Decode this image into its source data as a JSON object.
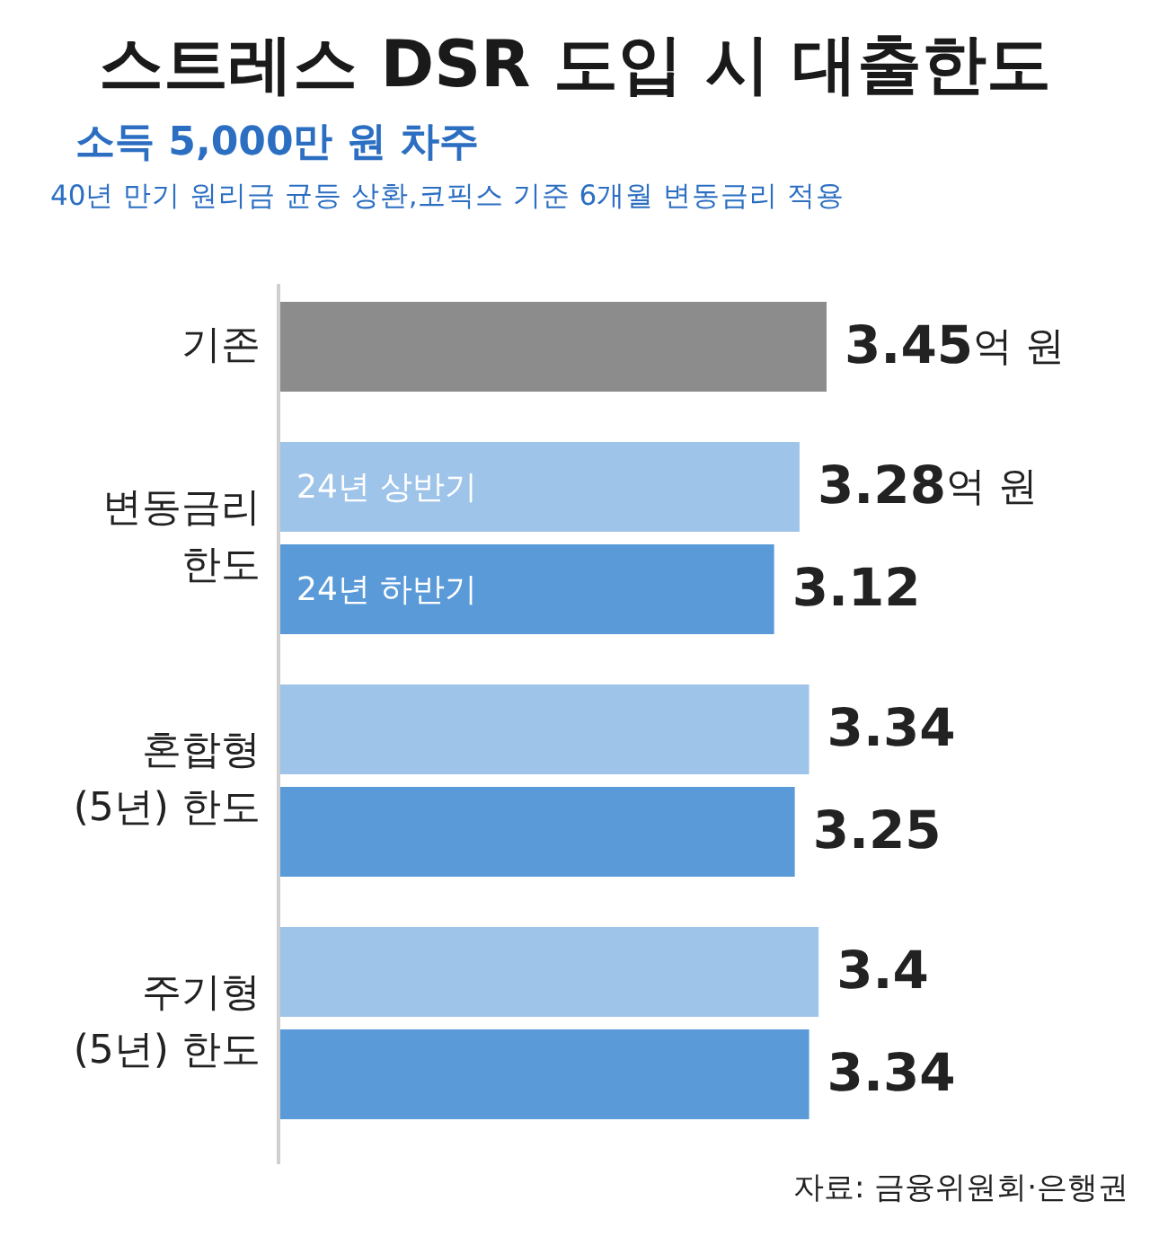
{
  "chart_data": {
    "type": "bar",
    "orientation": "horizontal",
    "title": "스트레스 DSR 도입 시 대출한도",
    "subtitle": "소득 5,000만 원 차주",
    "annotations": [
      "40년 만기 원리금 균등 상환,코픽스 기준 6개월 변동금리 적용",
      "자료: 금융위원회·은행권"
    ],
    "categories": [
      "기존",
      "변동금리\n한도",
      "혼합형\n(5년) 한도",
      "주기형\n(5년) 한도"
    ],
    "series": [
      {
        "color": "#8c8c8c",
        "values": [
          3.45,
          null,
          null,
          null
        ],
        "value_labels": [
          "3.45억 원",
          null,
          null,
          null
        ]
      },
      {
        "name": "24년 상반기",
        "color": "#9fc4e9",
        "values": [
          null,
          3.28,
          3.34,
          3.4
        ],
        "value_labels": [
          null,
          "3.28억 원",
          "3.34",
          "3.4"
        ]
      },
      {
        "name": "24년 하반기",
        "color": "#5a9ad8",
        "values": [
          null,
          3.12,
          3.25,
          3.34
        ],
        "value_labels": [
          null,
          "3.12",
          "3.25",
          "3.34"
        ]
      }
    ]
  }
}
